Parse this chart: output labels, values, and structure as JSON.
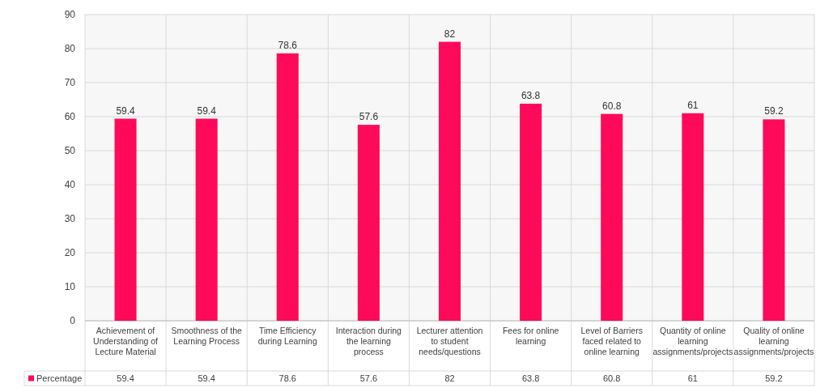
{
  "chart_data": {
    "type": "bar",
    "categories": [
      "Achievement of Understanding of Lecture Material",
      "Smoothness of the Learning Process",
      "Time Efficiency during Learning",
      "Interaction during the learning process",
      "Lecturer attention to student needs/questions",
      "Fees for online learning",
      "Level of Barriers faced related to online learning",
      "Quantity of online learning assignments/projects",
      "Quality of online learning assignments/projects"
    ],
    "series": [
      {
        "name": "Percentage",
        "color": "#ff0a5a",
        "values": [
          59.4,
          59.4,
          78.6,
          57.6,
          82,
          63.8,
          60.8,
          61,
          59.2
        ],
        "value_labels": [
          "59.4",
          "59.4",
          "78.6",
          "57.6",
          "82",
          "63.8",
          "60.8",
          "61",
          "59.2"
        ]
      }
    ],
    "ylim": [
      0,
      90
    ],
    "yticks": [
      0,
      10,
      20,
      30,
      40,
      50,
      60,
      70,
      80,
      90
    ],
    "annotations": [
      "59.4",
      "59.4",
      "78.6",
      "57.6",
      "82",
      "63.8",
      "60.8",
      "61",
      "59.2"
    ],
    "grid": true,
    "legend": "bottom left"
  }
}
